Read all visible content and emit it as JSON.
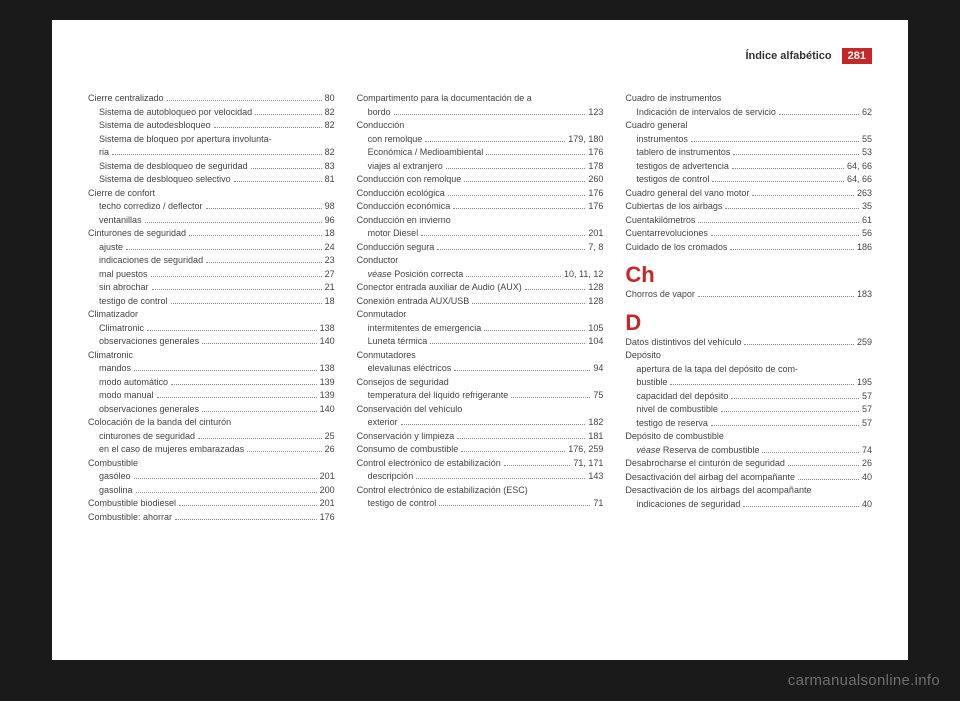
{
  "header": {
    "title": "Índice alfabético",
    "page_number": "281"
  },
  "watermark": "carmanualsonline.info",
  "colors": {
    "accent": "#c62828",
    "text": "#444444",
    "bg_page": "#ffffff",
    "bg_outer": "#1a1a1a"
  },
  "col1": [
    {
      "t": "Cierre centralizado",
      "p": "80"
    },
    {
      "t": "Sistema de autobloqueo por velocidad",
      "p": "82",
      "sub": 1
    },
    {
      "t": "Sistema de autodesbloqueo",
      "p": "82",
      "sub": 1
    },
    {
      "t": "Sistema de bloqueo por apertura involunta-",
      "sub": 1,
      "nolead": 1
    },
    {
      "t": "ria",
      "p": "82",
      "sub": 1,
      "cont": 1
    },
    {
      "t": "Sistema de desbloqueo de seguridad",
      "p": "83",
      "sub": 1
    },
    {
      "t": "Sistema de desbloqueo selectivo",
      "p": "81",
      "sub": 1
    },
    {
      "t": "Cierre de confort",
      "nolead": 1
    },
    {
      "t": "techo corredizo / deflector",
      "p": "98",
      "sub": 1
    },
    {
      "t": "ventanillas",
      "p": "96",
      "sub": 1
    },
    {
      "t": "Cinturones de seguridad",
      "p": "18"
    },
    {
      "t": "ajuste",
      "p": "24",
      "sub": 1
    },
    {
      "t": "indicaciones de seguridad",
      "p": "23",
      "sub": 1
    },
    {
      "t": "mal puestos",
      "p": "27",
      "sub": 1
    },
    {
      "t": "sin abrochar",
      "p": "21",
      "sub": 1
    },
    {
      "t": "testigo de control",
      "p": "18",
      "sub": 1
    },
    {
      "t": "Climatizador",
      "nolead": 1
    },
    {
      "t": "Climatronic",
      "p": "138",
      "sub": 1
    },
    {
      "t": "observaciones generales",
      "p": "140",
      "sub": 1
    },
    {
      "t": "Climatronic",
      "nolead": 1
    },
    {
      "t": "mandos",
      "p": "138",
      "sub": 1
    },
    {
      "t": "modo automático",
      "p": "139",
      "sub": 1
    },
    {
      "t": "modo manual",
      "p": "139",
      "sub": 1
    },
    {
      "t": "observaciones generales",
      "p": "140",
      "sub": 1
    },
    {
      "t": "Colocación de la banda del cinturón",
      "nolead": 1
    },
    {
      "t": "cinturones de seguridad",
      "p": "25",
      "sub": 1
    },
    {
      "t": "en el caso de mujeres embarazadas",
      "p": "26",
      "sub": 1
    },
    {
      "t": "Combustible",
      "nolead": 1
    },
    {
      "t": "gasóleo",
      "p": "201",
      "sub": 1
    },
    {
      "t": "gasolina",
      "p": "200",
      "sub": 1
    },
    {
      "t": "Combustible biodiesel",
      "p": "201"
    },
    {
      "t": "Combustible: ahorrar",
      "p": "176"
    }
  ],
  "col2": [
    {
      "t": "Compartimento para la documentación de a",
      "nolead": 1
    },
    {
      "t": "bordo",
      "p": "123",
      "sub": 1,
      "cont": 1
    },
    {
      "t": "Conducción",
      "nolead": 1
    },
    {
      "t": "con remolque",
      "p": "179, 180",
      "sub": 1
    },
    {
      "t": "Económica / Medioambiental",
      "p": "176",
      "sub": 1
    },
    {
      "t": "viajes al extranjero",
      "p": "178",
      "sub": 1
    },
    {
      "t": "Conducción con remolque",
      "p": "260"
    },
    {
      "t": "Conducción ecológica",
      "p": "176"
    },
    {
      "t": "Conducción económica",
      "p": "176"
    },
    {
      "t": "Conducción en invierno",
      "nolead": 1
    },
    {
      "t": "motor Diesel",
      "p": "201",
      "sub": 1
    },
    {
      "t": "Conducción segura",
      "p": "7, 8"
    },
    {
      "t": "Conductor",
      "nolead": 1
    },
    {
      "t": "Posición correcta",
      "p": "10, 11, 12",
      "sub": 1,
      "prefix": "véase "
    },
    {
      "t": "Conector entrada auxiliar de Audio (AUX)",
      "p": "128"
    },
    {
      "t": "Conexión entrada AUX/USB",
      "p": "128"
    },
    {
      "t": "Conmutador",
      "nolead": 1
    },
    {
      "t": "intermitentes de emergencia",
      "p": "105",
      "sub": 1
    },
    {
      "t": "Luneta térmica",
      "p": "104",
      "sub": 1
    },
    {
      "t": "Conmutadores",
      "nolead": 1
    },
    {
      "t": "elevalunas eléctricos",
      "p": "94",
      "sub": 1
    },
    {
      "t": "Consejos de seguridad",
      "nolead": 1
    },
    {
      "t": "temperatura del líquido refrigerante",
      "p": "75",
      "sub": 1
    },
    {
      "t": "Conservación del vehículo",
      "nolead": 1
    },
    {
      "t": "exterior",
      "p": "182",
      "sub": 1
    },
    {
      "t": "Conservación y limpieza",
      "p": "181"
    },
    {
      "t": "Consumo de combustible",
      "p": "176, 259"
    },
    {
      "t": "Control electrónico de estabilización",
      "p": "71, 171"
    },
    {
      "t": "descripción",
      "p": "143",
      "sub": 1
    },
    {
      "t": "Control electrónico de estabilización (ESC)",
      "nolead": 1
    },
    {
      "t": "testigo de control",
      "p": "71",
      "sub": 1
    }
  ],
  "col3": [
    {
      "t": "Cuadro de instrumentos",
      "nolead": 1
    },
    {
      "t": "Indicación de intervalos de servicio",
      "p": "62",
      "sub": 1
    },
    {
      "t": "Cuadro general",
      "nolead": 1
    },
    {
      "t": "instrumentos",
      "p": "55",
      "sub": 1
    },
    {
      "t": "tablero de instrumentos",
      "p": "53",
      "sub": 1
    },
    {
      "t": "testigos de advertencia",
      "p": "64, 66",
      "sub": 1
    },
    {
      "t": "testigos de control",
      "p": "64, 66",
      "sub": 1
    },
    {
      "t": "Cuadro general del vano motor",
      "p": "263"
    },
    {
      "t": "Cubiertas de los airbags",
      "p": "35"
    },
    {
      "t": "Cuentakilómetros",
      "p": "61"
    },
    {
      "t": "Cuentarrevoluciones",
      "p": "56"
    },
    {
      "t": "Cuidado de los cromados",
      "p": "186"
    },
    {
      "letter": "Ch"
    },
    {
      "t": "Chorros de vapor",
      "p": "183"
    },
    {
      "letter": "D"
    },
    {
      "t": "Datos distintivos del vehículo",
      "p": "259"
    },
    {
      "t": "Depósito",
      "nolead": 1
    },
    {
      "t": "apertura de la tapa del depósito de com-",
      "sub": 1,
      "nolead": 1
    },
    {
      "t": "bustible",
      "p": "195",
      "sub": 1,
      "cont": 1
    },
    {
      "t": "capacidad del depósito",
      "p": "57",
      "sub": 1
    },
    {
      "t": "nivel de combustible",
      "p": "57",
      "sub": 1
    },
    {
      "t": "testigo de reserva",
      "p": "57",
      "sub": 1
    },
    {
      "t": "Depósito de combustible",
      "nolead": 1
    },
    {
      "t": "Reserva de combustible",
      "p": "74",
      "sub": 1,
      "prefix": "véase "
    },
    {
      "t": "Desabrocharse el cinturón de seguridad",
      "p": "26"
    },
    {
      "t": "Desactivación del airbag del acompañante",
      "p": "40"
    },
    {
      "t": "Desactivación de los airbags del acompañante",
      "nolead": 1
    },
    {
      "t": "indicaciones de seguridad",
      "p": "40",
      "sub": 1
    }
  ]
}
